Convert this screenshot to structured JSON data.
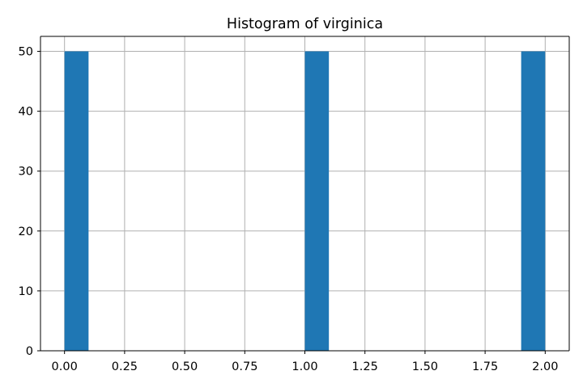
{
  "chart_data": {
    "type": "bar",
    "title": "Histogram of virginica",
    "xlabel": "",
    "ylabel": "",
    "xlim": [
      -0.1,
      2.1
    ],
    "ylim": [
      0,
      52.5
    ],
    "grid": true,
    "bins": [
      {
        "x0": 0.0,
        "x1": 0.1,
        "count": 50
      },
      {
        "x0": 1.0,
        "x1": 1.1,
        "count": 50
      },
      {
        "x0": 1.9,
        "x1": 2.0,
        "count": 50
      }
    ],
    "xticks": [
      0.0,
      0.25,
      0.5,
      0.75,
      1.0,
      1.25,
      1.5,
      1.75,
      2.0
    ],
    "xtick_labels": [
      "0.00",
      "0.25",
      "0.50",
      "0.75",
      "1.00",
      "1.25",
      "1.50",
      "1.75",
      "2.00"
    ],
    "yticks": [
      0,
      10,
      20,
      30,
      40,
      50
    ],
    "ytick_labels": [
      "0",
      "10",
      "20",
      "30",
      "40",
      "50"
    ],
    "colors": {
      "bar": "#1f77b4",
      "grid": "#b0b0b0",
      "axis": "#000000"
    }
  }
}
